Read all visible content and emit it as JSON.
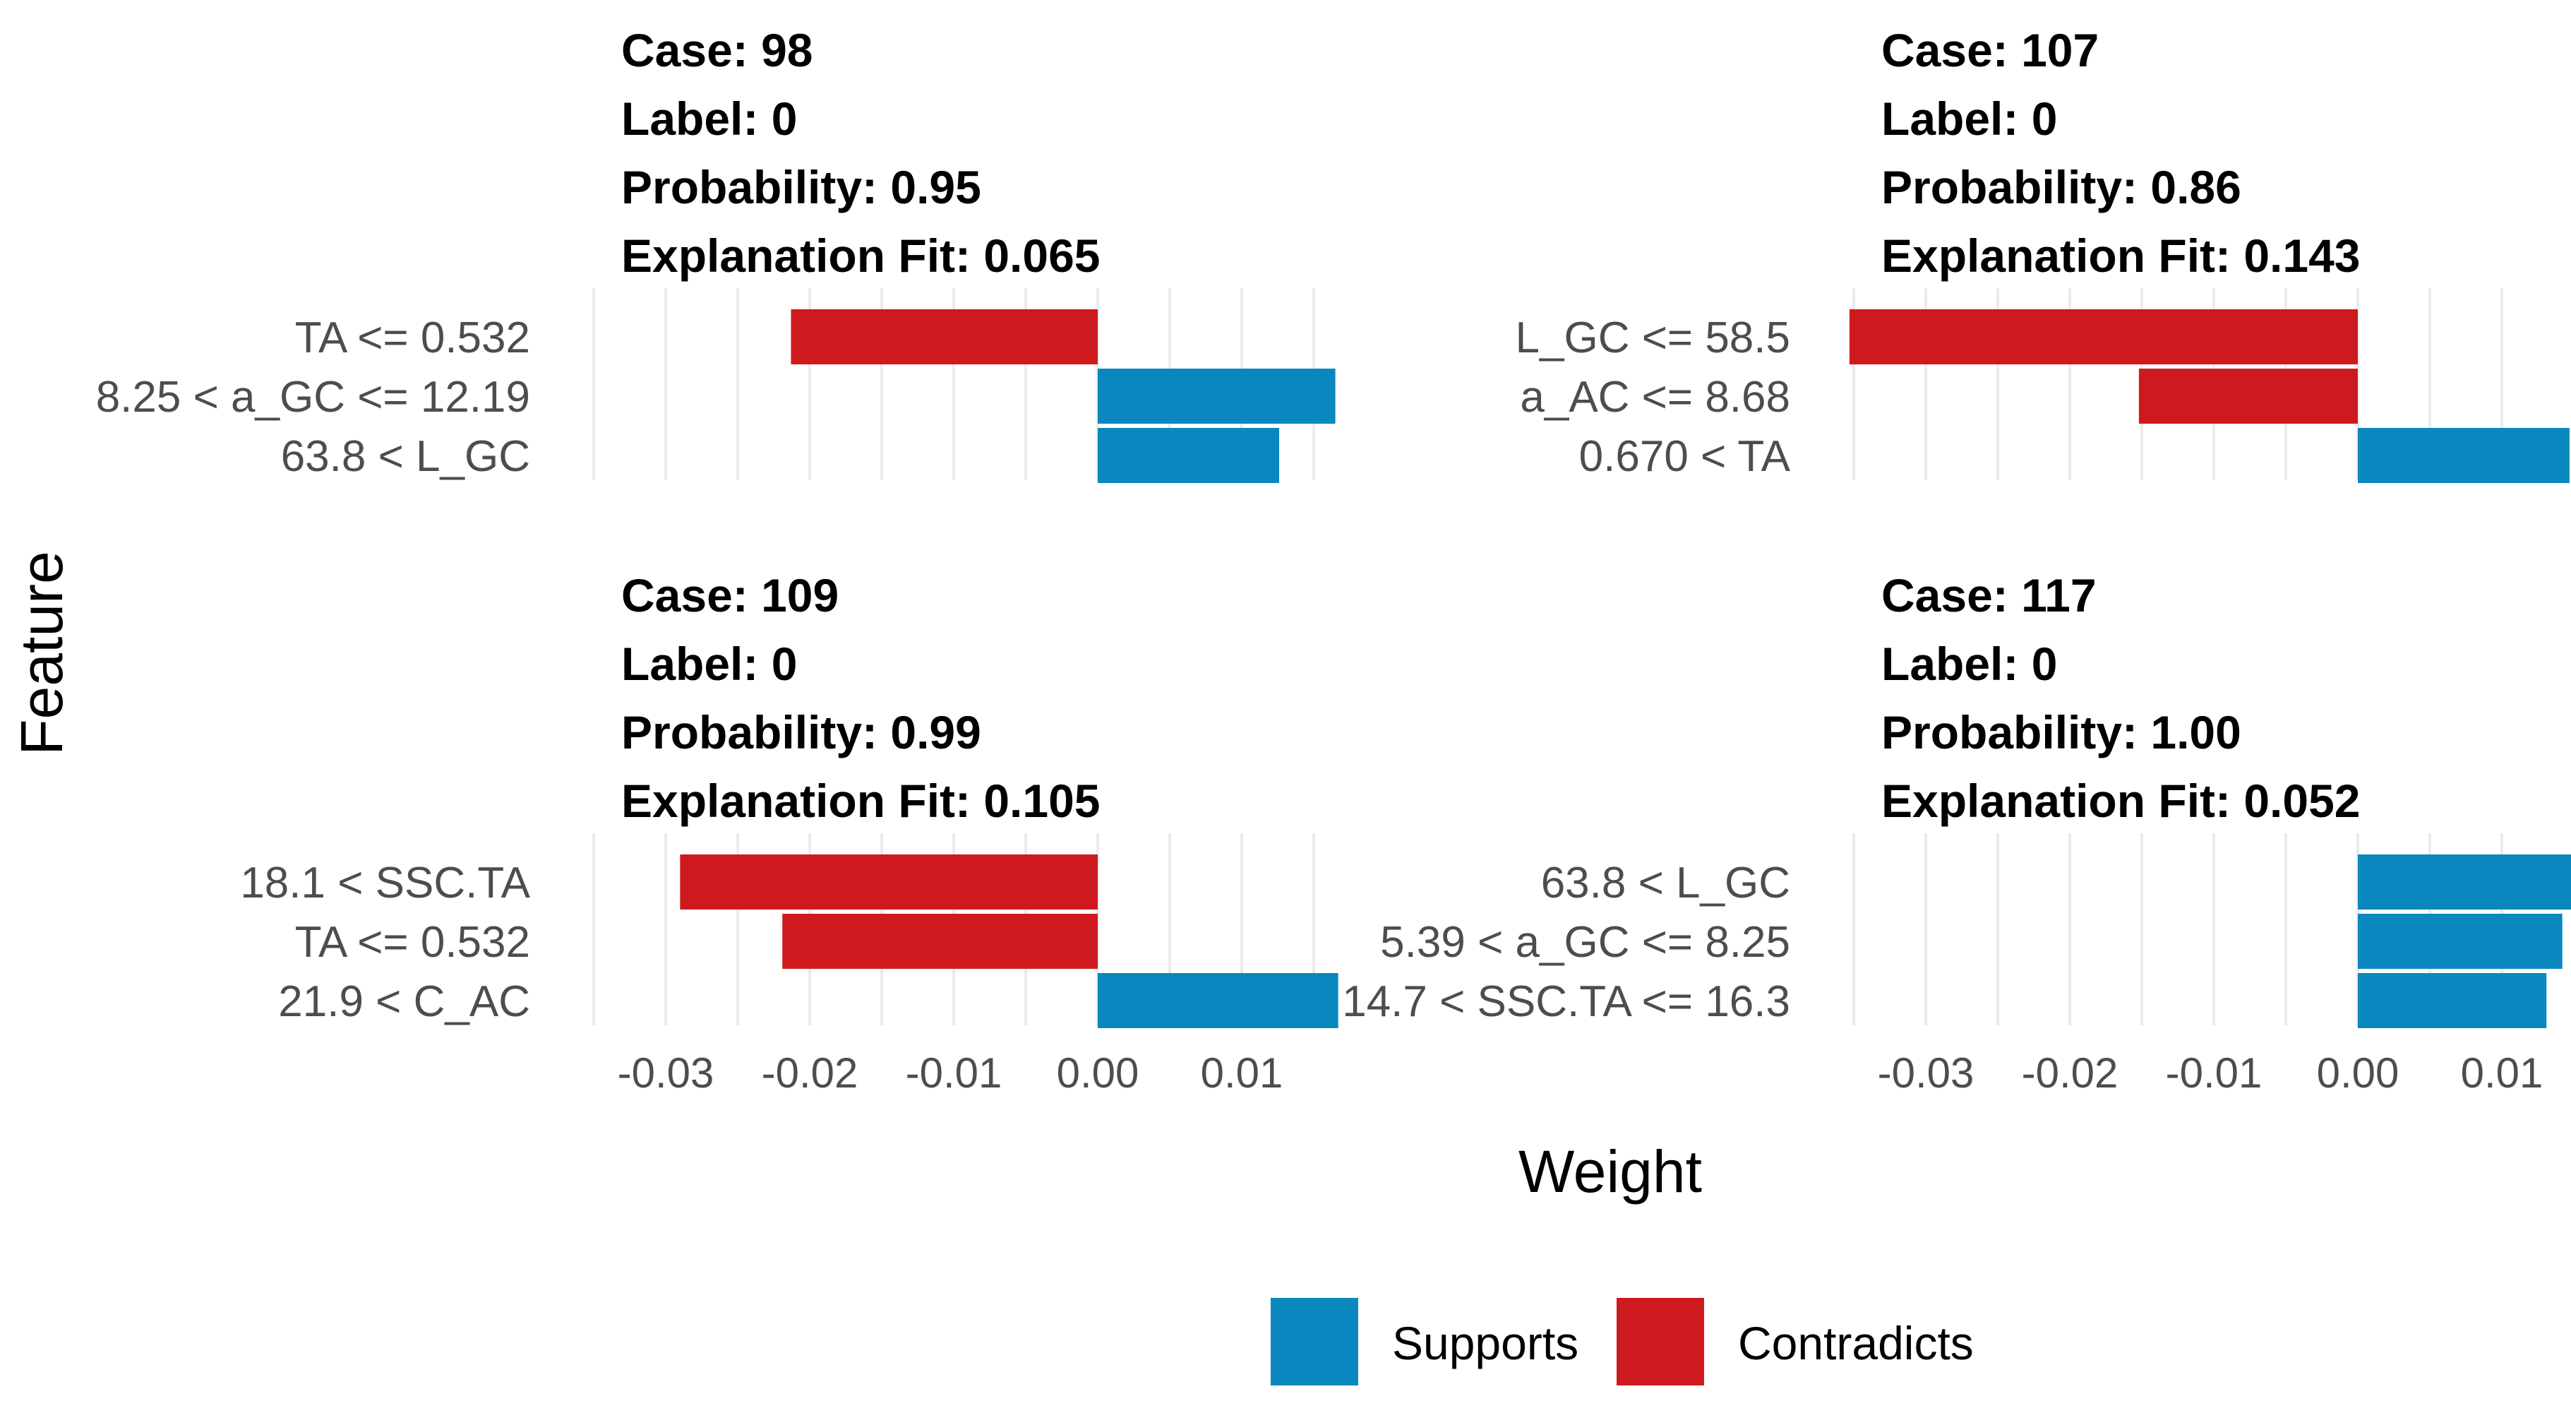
{
  "colors": {
    "supports": "#0A87BE",
    "contradicts": "#CE1A1E"
  },
  "chart_data": {
    "type": "bar",
    "orientation": "horizontal",
    "xlabel": "Weight",
    "ylabel": "Feature",
    "xlim": [
      -0.035,
      0.015
    ],
    "xticks": [
      -0.03,
      -0.02,
      -0.01,
      0.0,
      0.01
    ],
    "xtick_labels": [
      "-0.03",
      "-0.02",
      "-0.01",
      "0.00",
      "0.01"
    ],
    "legend": {
      "position": "bottom",
      "items": [
        {
          "key": "supports",
          "label": "Supports"
        },
        {
          "key": "contradicts",
          "label": "Contradicts"
        }
      ]
    },
    "panels": [
      {
        "case": "Case: 98",
        "label": "Label: 0",
        "probability": "Probability: 0.95",
        "fit": "Explanation Fit: 0.065",
        "features": [
          {
            "label": "TA <= 0.532",
            "weight": -0.0213
          },
          {
            "label": "8.25 < a_GC <= 12.19",
            "weight": 0.0165
          },
          {
            "label": "63.8 < L_GC",
            "weight": 0.0126
          }
        ]
      },
      {
        "case": "Case: 107",
        "label": "Label: 0",
        "probability": "Probability: 0.86",
        "fit": "Explanation Fit: 0.143",
        "features": [
          {
            "label": "L_GC <= 58.5",
            "weight": -0.0353
          },
          {
            "label": "a_AC <= 8.68",
            "weight": -0.0152
          },
          {
            "label": "0.670 < TA",
            "weight": 0.0147
          }
        ]
      },
      {
        "case": "Case: 109",
        "label": "Label: 0",
        "probability": "Probability: 0.99",
        "fit": "Explanation Fit: 0.105",
        "features": [
          {
            "label": "18.1 < SSC.TA",
            "weight": -0.029
          },
          {
            "label": "TA <= 0.532",
            "weight": -0.0219
          },
          {
            "label": "21.9 < C_AC",
            "weight": 0.0167
          }
        ]
      },
      {
        "case": "Case: 117",
        "label": "Label: 0",
        "probability": "Probability: 1.00",
        "fit": "Explanation Fit: 0.052",
        "features": [
          {
            "label": "63.8 < L_GC",
            "weight": 0.015
          },
          {
            "label": "5.39 < a_GC <= 8.25",
            "weight": 0.0142
          },
          {
            "label": "14.7 < SSC.TA <= 16.3",
            "weight": 0.0131
          }
        ]
      }
    ]
  }
}
